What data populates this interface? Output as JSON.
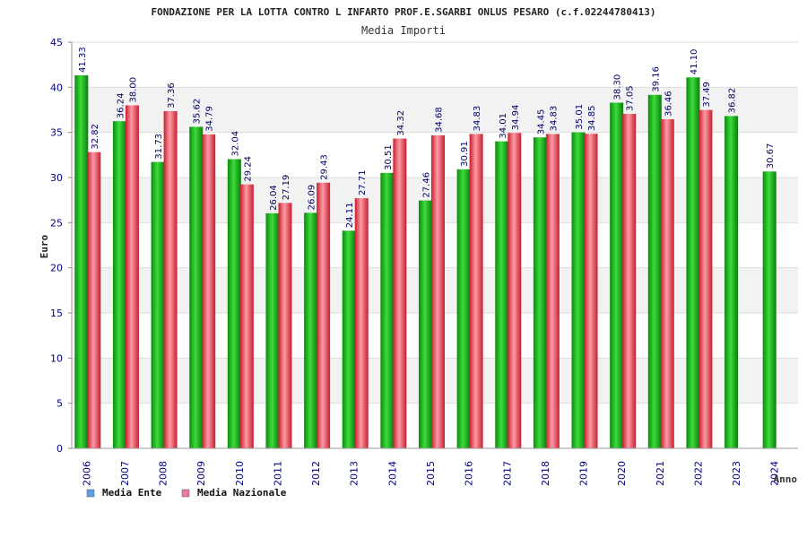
{
  "chart_data": {
    "type": "bar",
    "title": "FONDAZIONE PER LA LOTTA CONTRO L INFARTO PROF.E.SGARBI ONLUS PESARO (c.f.02244780413)",
    "subtitle": "Media Importi",
    "xlabel": "Anno",
    "ylabel": "Euro",
    "ylim": [
      0,
      45
    ],
    "yticks": [
      "0",
      "5",
      "10",
      "15",
      "20",
      "25",
      "30",
      "35",
      "40",
      "45"
    ],
    "grid": true,
    "legend_position": "bottom-left",
    "categories": [
      "2006",
      "2007",
      "2008",
      "2009",
      "2010",
      "2011",
      "2012",
      "2013",
      "2014",
      "2015",
      "2016",
      "2017",
      "2018",
      "2019",
      "2020",
      "2021",
      "2022",
      "2023",
      "2024"
    ],
    "series": [
      {
        "name": "Media Ente",
        "color": "#19b219",
        "legend_color": "#5aa0e8",
        "values": [
          41.33,
          36.24,
          31.73,
          35.62,
          32.04,
          26.04,
          26.09,
          24.11,
          30.51,
          27.46,
          30.91,
          34.01,
          34.45,
          35.01,
          38.3,
          39.16,
          41.1,
          36.82,
          30.67
        ],
        "labels": [
          "41.33",
          "36.24",
          "31.73",
          "35.62",
          "32.04",
          "26.04",
          "26.09",
          "24.11",
          "30.51",
          "27.46",
          "30.91",
          "34.01",
          "34.45",
          "35.01",
          "38.30",
          "39.16",
          "41.10",
          "36.82",
          "30.67"
        ]
      },
      {
        "name": "Media Nazionale",
        "color": "#e83c4a",
        "legend_color": "#e87aa6",
        "values": [
          32.82,
          38.0,
          37.36,
          34.79,
          29.24,
          27.19,
          29.43,
          27.71,
          34.32,
          34.68,
          34.83,
          34.94,
          34.83,
          34.85,
          37.05,
          36.46,
          37.49,
          null,
          null
        ],
        "labels": [
          "32.82",
          "38.00",
          "37.36",
          "34.79",
          "29.24",
          "27.19",
          "29.43",
          "27.71",
          "34.32",
          "34.68",
          "34.83",
          "34.94",
          "34.83",
          "34.85",
          "37.05",
          "36.46",
          "37.49",
          null,
          null
        ]
      }
    ]
  }
}
